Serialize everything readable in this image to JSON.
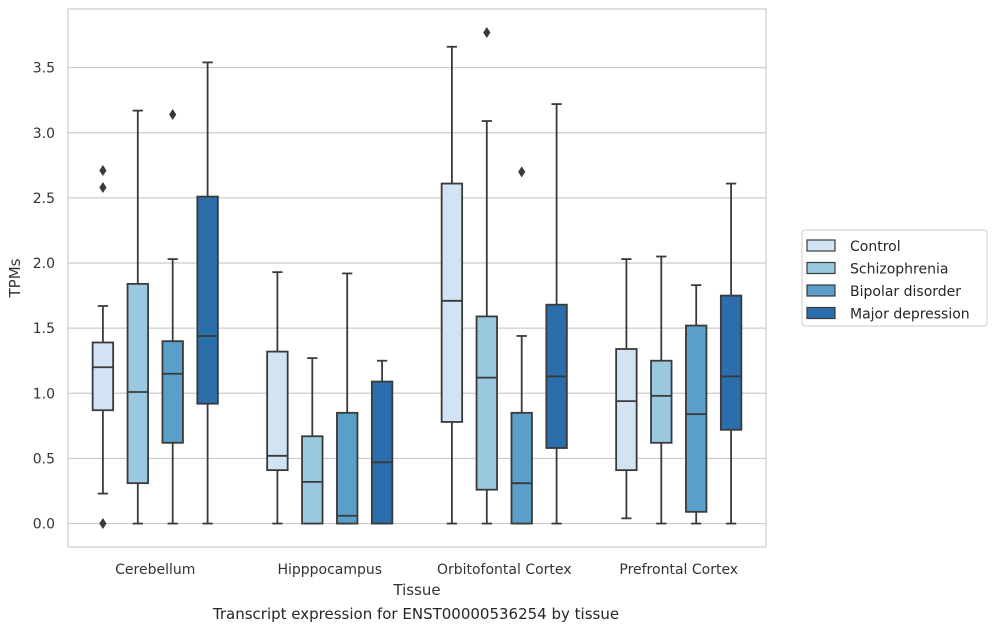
{
  "caption": "Transcript expression for ENST00000536254 by tissue",
  "chart_data": {
    "type": "boxplot",
    "xlabel": "Tissue",
    "ylabel": "TPMs",
    "ylim": [
      -0.18,
      3.95
    ],
    "yticks": [
      0.0,
      0.5,
      1.0,
      1.5,
      2.0,
      2.5,
      3.0,
      3.5
    ],
    "ytick_labels": [
      "0.0",
      "0.5",
      "1.0",
      "1.5",
      "2.0",
      "2.5",
      "3.0",
      "3.5"
    ],
    "grid": "horizontal",
    "legend_position": "right",
    "categories": [
      "Cerebellum",
      "Hipppocampus",
      "Orbitofontal Cortex",
      "Prefrontal Cortex"
    ],
    "series": [
      {
        "name": "Control",
        "color": "#d2e3f3",
        "boxes": [
          {
            "whislo": 0.23,
            "q1": 0.87,
            "med": 1.2,
            "q3": 1.39,
            "whishi": 1.67,
            "fliers": [
              2.71,
              2.58,
              0.0
            ]
          },
          {
            "whislo": 0.0,
            "q1": 0.41,
            "med": 0.52,
            "q3": 1.32,
            "whishi": 1.93,
            "fliers": []
          },
          {
            "whislo": 0.0,
            "q1": 0.78,
            "med": 1.71,
            "q3": 2.61,
            "whishi": 3.66,
            "fliers": []
          },
          {
            "whislo": 0.04,
            "q1": 0.41,
            "med": 0.94,
            "q3": 1.34,
            "whishi": 2.03,
            "fliers": []
          }
        ]
      },
      {
        "name": "Schizophrenia",
        "color": "#9ac8e0",
        "boxes": [
          {
            "whislo": 0.0,
            "q1": 0.31,
            "med": 1.01,
            "q3": 1.84,
            "whishi": 3.17,
            "fliers": []
          },
          {
            "whislo": 0.0,
            "q1": 0.0,
            "med": 0.32,
            "q3": 0.67,
            "whishi": 1.27,
            "fliers": []
          },
          {
            "whislo": 0.0,
            "q1": 0.26,
            "med": 1.12,
            "q3": 1.59,
            "whishi": 3.09,
            "fliers": [
              3.77
            ]
          },
          {
            "whislo": 0.0,
            "q1": 0.62,
            "med": 0.98,
            "q3": 1.25,
            "whishi": 2.05,
            "fliers": []
          }
        ]
      },
      {
        "name": "Bipolar disorder",
        "color": "#5a9ec9",
        "boxes": [
          {
            "whislo": 0.0,
            "q1": 0.62,
            "med": 1.15,
            "q3": 1.4,
            "whishi": 2.03,
            "fliers": [
              3.14
            ]
          },
          {
            "whislo": 0.0,
            "q1": 0.0,
            "med": 0.06,
            "q3": 0.85,
            "whishi": 1.92,
            "fliers": []
          },
          {
            "whislo": 0.0,
            "q1": 0.0,
            "med": 0.31,
            "q3": 0.85,
            "whishi": 1.44,
            "fliers": [
              2.7
            ]
          },
          {
            "whislo": 0.0,
            "q1": 0.09,
            "med": 0.84,
            "q3": 1.52,
            "whishi": 1.83,
            "fliers": []
          }
        ]
      },
      {
        "name": "Major depression",
        "color": "#2b6eab",
        "boxes": [
          {
            "whislo": 0.0,
            "q1": 0.92,
            "med": 1.44,
            "q3": 2.51,
            "whishi": 3.54,
            "fliers": []
          },
          {
            "whislo": 0.0,
            "q1": 0.0,
            "med": 0.47,
            "q3": 1.09,
            "whishi": 1.25,
            "fliers": []
          },
          {
            "whislo": 0.0,
            "q1": 0.58,
            "med": 1.13,
            "q3": 1.68,
            "whishi": 3.22,
            "fliers": []
          },
          {
            "whislo": 0.0,
            "q1": 0.72,
            "med": 1.13,
            "q3": 1.75,
            "whishi": 2.61,
            "fliers": []
          }
        ]
      }
    ]
  }
}
